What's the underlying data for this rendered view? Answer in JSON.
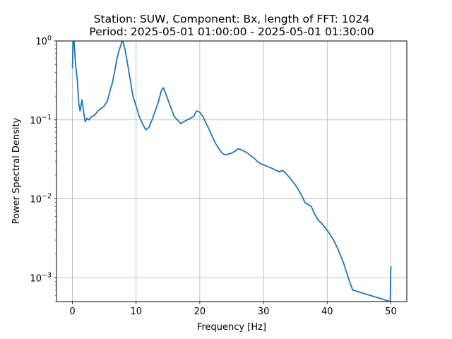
{
  "chart_data": {
    "type": "line",
    "title": "Station: SUW, Component: Bx, length of FFT: 1024",
    "subtitle": "Period: 2025-05-01 01:00:00 - 2025-05-01 01:30:00",
    "xlabel": "Frequency [Hz]",
    "ylabel": "Power Spectral Density",
    "xlim": [
      -2.5,
      52.5
    ],
    "ylim": [
      0.0005,
      1
    ],
    "yscale": "log",
    "grid": true,
    "line_color": "#1f77b4",
    "x_ticks": [
      {
        "value": 0,
        "label": "0"
      },
      {
        "value": 10,
        "label": "10"
      },
      {
        "value": 20,
        "label": "20"
      },
      {
        "value": 30,
        "label": "30"
      },
      {
        "value": 40,
        "label": "40"
      },
      {
        "value": 50,
        "label": "50"
      }
    ],
    "y_ticks": [
      {
        "value": 0.001,
        "base": "10",
        "exp": "−3"
      },
      {
        "value": 0.01,
        "base": "10",
        "exp": "−2"
      },
      {
        "value": 0.1,
        "base": "10",
        "exp": "−1"
      },
      {
        "value": 1,
        "base": "10",
        "exp": "0"
      }
    ],
    "series": [
      {
        "x": [
          0.0,
          0.1,
          0.25,
          0.5,
          0.8,
          1.0,
          1.2,
          1.5,
          1.8,
          2.0,
          2.3,
          2.6,
          3.0,
          3.5,
          4.0,
          4.5,
          5.0,
          5.5,
          6.0,
          6.3,
          6.6,
          7.0,
          7.3,
          7.6,
          7.8,
          8.0,
          8.3,
          8.6,
          9.0,
          9.5,
          10.0,
          10.5,
          11.0,
          11.5,
          12.0,
          12.5,
          13.0,
          13.5,
          14.0,
          14.3,
          14.6,
          15.0,
          15.5,
          16.0,
          16.5,
          17.0,
          17.5,
          18.0,
          18.5,
          19.0,
          19.5,
          20.0,
          20.5,
          21.0,
          21.5,
          22.0,
          22.5,
          23.0,
          23.5,
          24.0,
          24.5,
          25.0,
          25.5,
          26.0,
          26.5,
          27.0,
          27.5,
          28.0,
          28.5,
          29.0,
          29.5,
          30.0,
          30.5,
          31.0,
          31.5,
          32.0,
          32.5,
          33.0,
          33.5,
          34.0,
          34.5,
          35.0,
          35.5,
          36.0,
          36.5,
          37.0,
          37.5,
          38.0,
          38.5,
          39.0,
          39.5,
          40.0,
          40.5,
          41.0,
          41.5,
          42.0,
          42.5,
          43.0,
          43.5,
          44.0,
          49.9,
          49.95,
          50.0
        ],
        "y": [
          0.45,
          0.95,
          1.0,
          0.5,
          0.3,
          0.16,
          0.13,
          0.18,
          0.12,
          0.095,
          0.105,
          0.1,
          0.11,
          0.115,
          0.13,
          0.14,
          0.15,
          0.175,
          0.25,
          0.3,
          0.4,
          0.6,
          0.75,
          0.88,
          1.0,
          0.95,
          0.75,
          0.55,
          0.35,
          0.2,
          0.15,
          0.11,
          0.09,
          0.075,
          0.08,
          0.1,
          0.13,
          0.17,
          0.24,
          0.255,
          0.22,
          0.18,
          0.14,
          0.11,
          0.1,
          0.09,
          0.095,
          0.1,
          0.105,
          0.11,
          0.13,
          0.125,
          0.11,
          0.09,
          0.075,
          0.06,
          0.05,
          0.043,
          0.038,
          0.036,
          0.037,
          0.038,
          0.04,
          0.043,
          0.042,
          0.04,
          0.038,
          0.035,
          0.033,
          0.03,
          0.028,
          0.027,
          0.026,
          0.025,
          0.024,
          0.023,
          0.022,
          0.023,
          0.021,
          0.019,
          0.017,
          0.015,
          0.013,
          0.011,
          0.009,
          0.0085,
          0.008,
          0.0065,
          0.0055,
          0.005,
          0.0045,
          0.004,
          0.0035,
          0.003,
          0.0025,
          0.002,
          0.0016,
          0.0012,
          0.0009,
          0.0007,
          0.0005,
          0.0009,
          0.0014
        ]
      }
    ]
  }
}
